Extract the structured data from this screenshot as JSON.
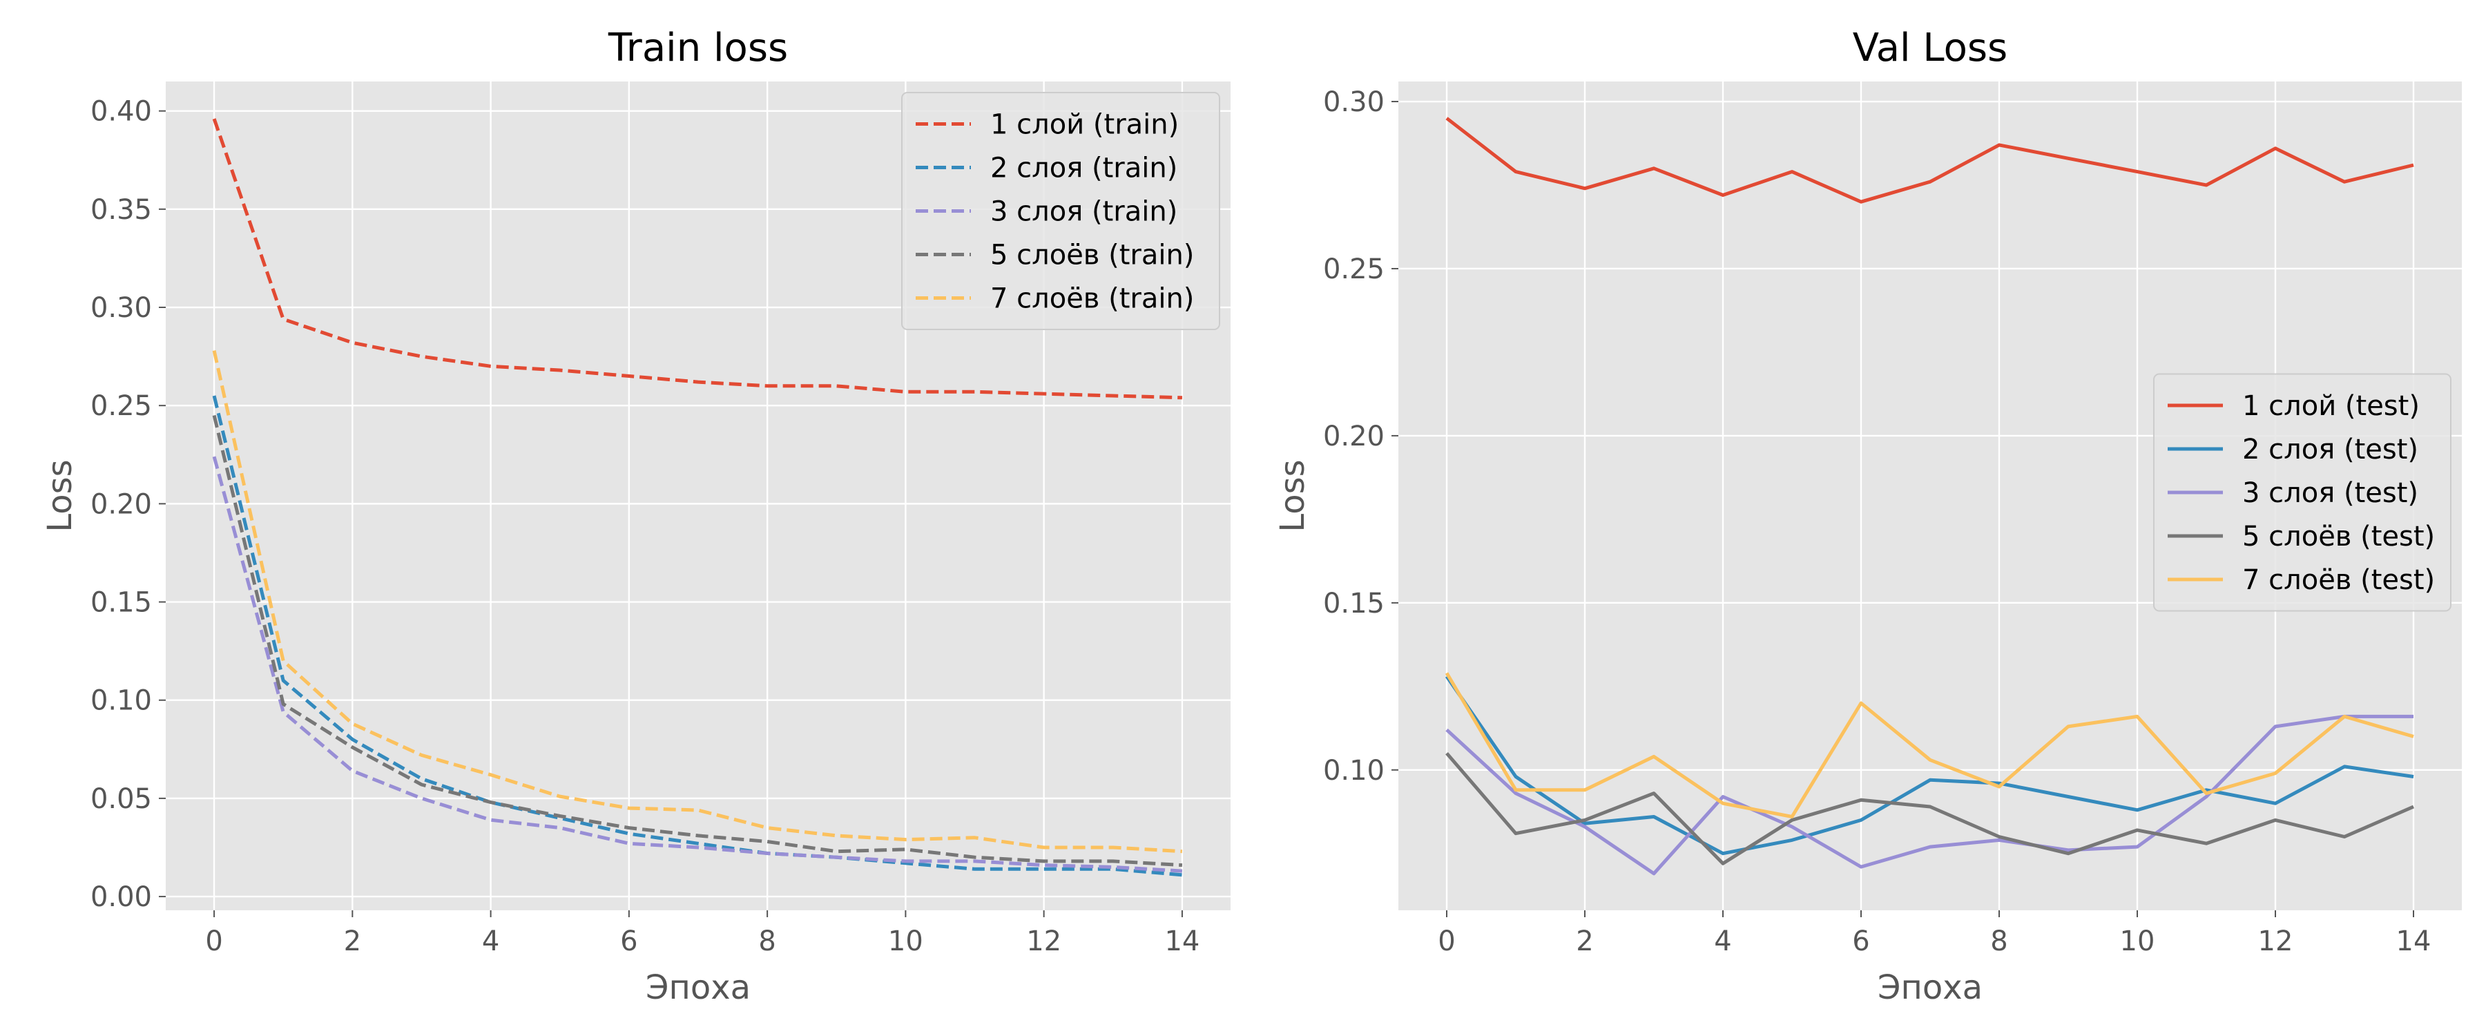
{
  "chart_data": [
    {
      "type": "line",
      "title": "Train loss",
      "xlabel": "Эпоха",
      "ylabel": "Loss",
      "xlim": [
        -0.7,
        14.7
      ],
      "ylim": [
        -0.007,
        0.415
      ],
      "xticks": [
        0,
        2,
        4,
        6,
        8,
        10,
        12,
        14
      ],
      "yticks": [
        0.0,
        0.05,
        0.1,
        0.15,
        0.2,
        0.25,
        0.3,
        0.35,
        0.4
      ],
      "ytick_labels": [
        "0.00",
        "0.05",
        "0.10",
        "0.15",
        "0.20",
        "0.25",
        "0.30",
        "0.35",
        "0.40"
      ],
      "line_style": "dashed",
      "grid": true,
      "legend_position": "top-right",
      "x": [
        0,
        1,
        2,
        3,
        4,
        5,
        6,
        7,
        8,
        9,
        10,
        11,
        12,
        13,
        14
      ],
      "series": [
        {
          "name": "1 слой (train)",
          "color": "#E24A33",
          "values": [
            0.396,
            0.294,
            0.282,
            0.275,
            0.27,
            0.268,
            0.265,
            0.262,
            0.26,
            0.26,
            0.257,
            0.257,
            0.256,
            0.255,
            0.254
          ]
        },
        {
          "name": "2 слоя (train)",
          "color": "#348ABD",
          "values": [
            0.255,
            0.11,
            0.08,
            0.06,
            0.048,
            0.04,
            0.032,
            0.027,
            0.022,
            0.02,
            0.017,
            0.014,
            0.014,
            0.014,
            0.011
          ]
        },
        {
          "name": "3 слоя (train)",
          "color": "#988ED5",
          "values": [
            0.224,
            0.094,
            0.064,
            0.05,
            0.039,
            0.035,
            0.027,
            0.025,
            0.022,
            0.02,
            0.018,
            0.018,
            0.016,
            0.015,
            0.013
          ]
        },
        {
          "name": "5 слоёв (train)",
          "color": "#777777",
          "values": [
            0.245,
            0.098,
            0.076,
            0.057,
            0.048,
            0.041,
            0.035,
            0.031,
            0.028,
            0.023,
            0.024,
            0.02,
            0.018,
            0.018,
            0.016
          ]
        },
        {
          "name": "7 слоёв (train)",
          "color": "#FBC15E",
          "values": [
            0.278,
            0.12,
            0.088,
            0.072,
            0.062,
            0.051,
            0.045,
            0.044,
            0.035,
            0.031,
            0.029,
            0.03,
            0.025,
            0.025,
            0.023
          ]
        }
      ]
    },
    {
      "type": "line",
      "title": "Val Loss",
      "xlabel": "Эпоха",
      "ylabel": "Loss",
      "xlim": [
        -0.7,
        14.7
      ],
      "ylim": [
        0.058,
        0.306
      ],
      "xticks": [
        0,
        2,
        4,
        6,
        8,
        10,
        12,
        14
      ],
      "yticks": [
        0.1,
        0.15,
        0.2,
        0.25,
        0.3
      ],
      "ytick_labels": [
        "0.10",
        "0.15",
        "0.20",
        "0.25",
        "0.30"
      ],
      "line_style": "solid",
      "grid": true,
      "legend_position": "center-right",
      "x": [
        0,
        1,
        2,
        3,
        4,
        5,
        6,
        7,
        8,
        9,
        10,
        11,
        12,
        13,
        14
      ],
      "series": [
        {
          "name": "1 слой (test)",
          "color": "#E24A33",
          "values": [
            0.295,
            0.279,
            0.274,
            0.28,
            0.272,
            0.279,
            0.27,
            0.276,
            0.287,
            0.283,
            0.279,
            0.275,
            0.286,
            0.276,
            0.281
          ]
        },
        {
          "name": "2 слоя (test)",
          "color": "#348ABD",
          "values": [
            0.128,
            0.098,
            0.084,
            0.086,
            0.075,
            0.079,
            0.085,
            0.097,
            0.096,
            0.092,
            0.088,
            0.094,
            0.09,
            0.101,
            0.098
          ]
        },
        {
          "name": "3 слоя (test)",
          "color": "#988ED5",
          "values": [
            0.112,
            0.093,
            0.083,
            0.069,
            0.092,
            0.083,
            0.071,
            0.077,
            0.079,
            0.076,
            0.077,
            0.092,
            0.113,
            0.116,
            0.116
          ]
        },
        {
          "name": "5 слоёв (test)",
          "color": "#777777",
          "values": [
            0.105,
            0.081,
            0.085,
            0.093,
            0.072,
            0.085,
            0.091,
            0.089,
            0.08,
            0.075,
            0.082,
            0.078,
            0.085,
            0.08,
            0.089
          ]
        },
        {
          "name": "7 слоёв (test)",
          "color": "#FBC15E",
          "values": [
            0.129,
            0.094,
            0.094,
            0.104,
            0.09,
            0.086,
            0.12,
            0.103,
            0.095,
            0.113,
            0.116,
            0.093,
            0.099,
            0.116,
            0.11
          ]
        }
      ]
    }
  ],
  "style": {
    "axes_background": "#E5E5E5",
    "grid_color": "#FFFFFF",
    "text_color": "#555555",
    "legend_background": "#E5E5E5",
    "legend_border": "#CCCCCC"
  }
}
